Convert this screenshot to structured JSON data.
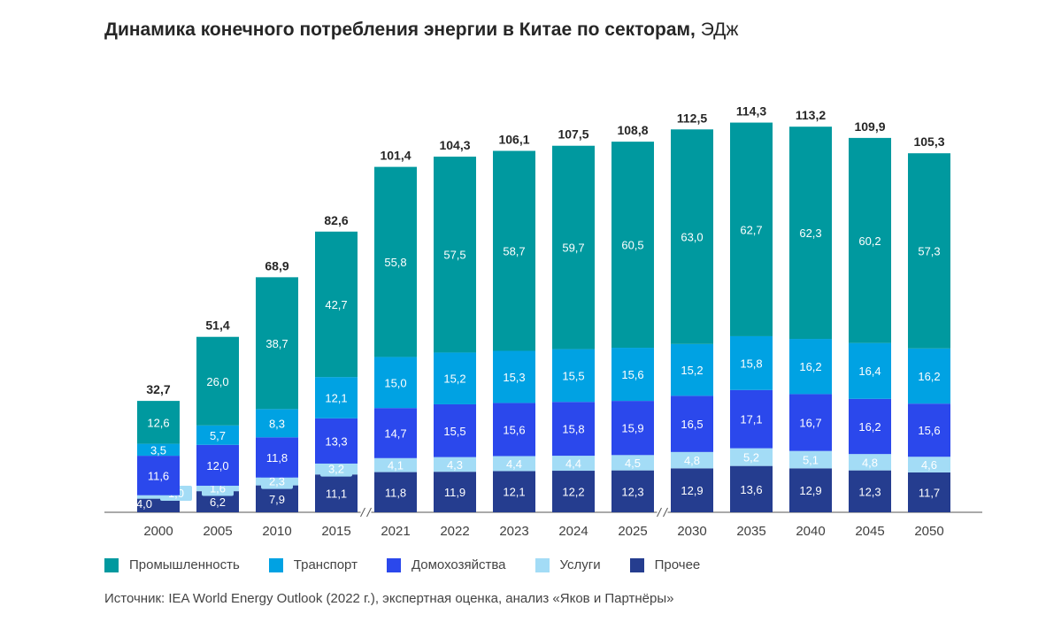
{
  "title_main": "Динамика конечного потребления энергии в Китае по секторам,",
  "title_unit": "ЭДж",
  "source": "Источник: IEA World Energy Outlook (2022 г.), экспертная оценка, анализ «Яков и Партнёры»",
  "colors": {
    "industry": "#00999f",
    "transport": "#00a2e3",
    "households": "#2b48ec",
    "services": "#a3dcf6",
    "other": "#253d8f"
  },
  "legend": [
    {
      "key": "industry",
      "label": "Промышленность"
    },
    {
      "key": "transport",
      "label": "Транспорт"
    },
    {
      "key": "households",
      "label": "Домохозяйства"
    },
    {
      "key": "services",
      "label": "Услуги"
    },
    {
      "key": "other",
      "label": "Прочее"
    }
  ],
  "chart_data": {
    "type": "bar",
    "stacked": true,
    "title": "Динамика конечного потребления энергии в Китае по секторам, ЭДж",
    "categories": [
      "2000",
      "2005",
      "2010",
      "2015",
      "2021",
      "2022",
      "2023",
      "2024",
      "2025",
      "2030",
      "2035",
      "2040",
      "2045",
      "2050"
    ],
    "axis_breaks_after": [
      "2015",
      "2025"
    ],
    "series": [
      {
        "name": "Прочее",
        "key": "other",
        "values": [
          4.0,
          6.2,
          7.9,
          11.1,
          11.8,
          11.9,
          12.1,
          12.2,
          12.3,
          12.9,
          13.6,
          12.9,
          12.3,
          11.7
        ],
        "labels": [
          "4,0",
          "6,2",
          "7,9",
          "11,1",
          "11,8",
          "11,9",
          "12,1",
          "12,2",
          "12,3",
          "12,9",
          "13,6",
          "12,9",
          "12,3",
          "11,7"
        ]
      },
      {
        "name": "Услуги",
        "key": "services",
        "values": [
          1.0,
          1.6,
          2.3,
          3.2,
          4.1,
          4.3,
          4.4,
          4.4,
          4.5,
          4.8,
          5.2,
          5.1,
          4.8,
          4.6
        ],
        "labels": [
          "1,0",
          "1,6",
          "2,3",
          "3,2",
          "4,1",
          "4,3",
          "4,4",
          "4,4",
          "4,5",
          "4,8",
          "5,2",
          "5,1",
          "4,8",
          "4,6"
        ]
      },
      {
        "name": "Домохозяйства",
        "key": "households",
        "values": [
          11.6,
          12.0,
          11.8,
          13.3,
          14.7,
          15.5,
          15.6,
          15.8,
          15.9,
          16.5,
          17.1,
          16.7,
          16.2,
          15.6
        ],
        "labels": [
          "11,6",
          "12,0",
          "11,8",
          "13,3",
          "14,7",
          "15,5",
          "15,6",
          "15,8",
          "15,9",
          "16,5",
          "17,1",
          "16,7",
          "16,2",
          "15,6"
        ]
      },
      {
        "name": "Транспорт",
        "key": "transport",
        "values": [
          3.5,
          5.7,
          8.3,
          12.1,
          15.0,
          15.2,
          15.3,
          15.5,
          15.6,
          15.2,
          15.8,
          16.2,
          16.4,
          16.2
        ],
        "labels": [
          "3,5",
          "5,7",
          "8,3",
          "12,1",
          "15,0",
          "15,2",
          "15,3",
          "15,5",
          "15,6",
          "15,2",
          "15,8",
          "16,2",
          "16,4",
          "16,2"
        ]
      },
      {
        "name": "Промышленность",
        "key": "industry",
        "values": [
          12.6,
          26.0,
          38.7,
          42.7,
          55.8,
          57.5,
          58.7,
          59.7,
          60.5,
          63.0,
          62.7,
          62.3,
          60.2,
          57.3
        ],
        "labels": [
          "12,6",
          "26,0",
          "38,7",
          "42,7",
          "55,8",
          "57,5",
          "58,7",
          "59,7",
          "60,5",
          "63,0",
          "62,7",
          "62,3",
          "60,2",
          "57,3"
        ]
      }
    ],
    "totals": [
      32.7,
      51.4,
      68.9,
      82.6,
      101.4,
      104.3,
      106.1,
      107.5,
      108.8,
      112.5,
      114.3,
      113.2,
      109.9,
      105.3
    ],
    "total_labels": [
      "32,7",
      "51,4",
      "68,9",
      "82,6",
      "101,4",
      "104,3",
      "106,1",
      "107,5",
      "108,8",
      "112,5",
      "114,3",
      "113,2",
      "109,9",
      "105,3"
    ]
  }
}
